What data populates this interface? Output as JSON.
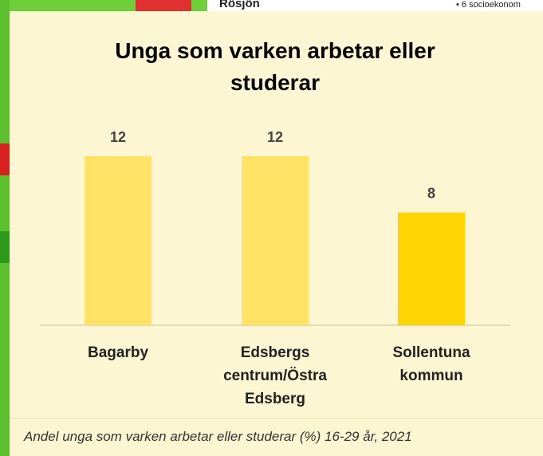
{
  "background_labels": [
    "Rösjön",
    "• 6 socioekonom"
  ],
  "chart_data": {
    "type": "bar",
    "title": "Unga som varken arbetar eller studerar",
    "caption": "Andel unga som varken arbetar eller studerar (%) 16-29 år, 2021",
    "categories": [
      "Bagarby",
      "Edsbergs centrum/Östra Edsberg",
      "Sollentuna kommun"
    ],
    "values": [
      12,
      12,
      8
    ],
    "colors": [
      "#FFE266",
      "#FFE266",
      "#FFD500"
    ],
    "ylim": [
      0,
      12
    ]
  }
}
